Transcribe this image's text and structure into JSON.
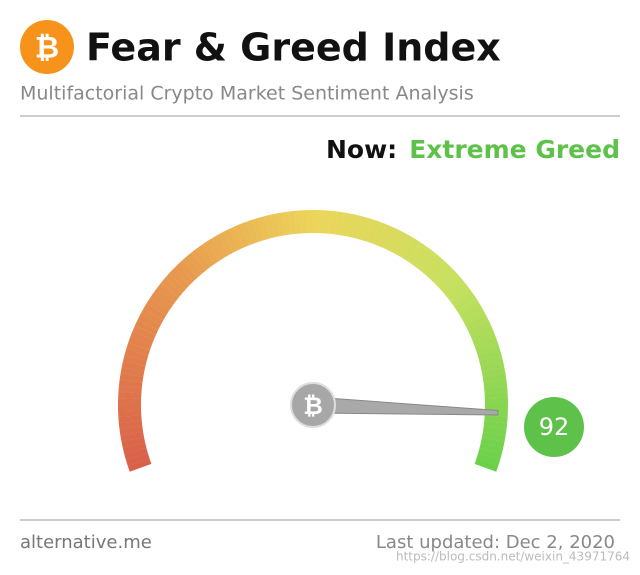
{
  "header": {
    "title": "Fear & Greed Index",
    "subtitle": "Multifactorial Crypto Market Sentiment Analysis"
  },
  "status": {
    "label": "Now:",
    "classification": "Extreme Greed"
  },
  "chart_data": {
    "type": "gauge",
    "value": 92,
    "ylim": [
      0,
      100
    ],
    "color": "#5ec24a"
  },
  "footer": {
    "source": "alternative.me",
    "updated": "Last updated: Dec 2, 2020",
    "watermark": "https://blog.csdn.net/weixin_43971764"
  }
}
